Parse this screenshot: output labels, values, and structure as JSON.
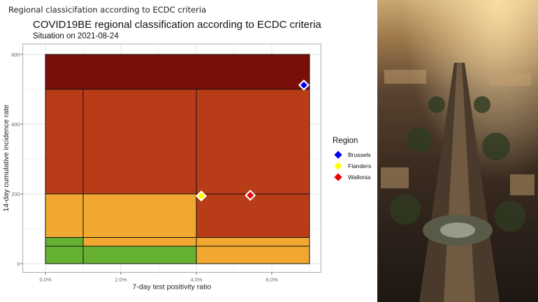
{
  "page_title": "Regional classicifation according to ECDC criteria",
  "chart_data": {
    "type": "scatter",
    "title": "COVID19BE regional classification according to ECDC criteria",
    "subtitle": "Situation on 2021-08-24",
    "xlabel": "7-day test positivity ratio",
    "ylabel": "14-day cumulative incidence rate",
    "xlim": [
      -0.6,
      7.3
    ],
    "ylim": [
      -25,
      630
    ],
    "xticks": [
      0,
      2,
      4,
      6
    ],
    "xtick_labels": [
      "0.0%",
      "2.0%",
      "4.0%",
      "6.0%"
    ],
    "yticks": [
      0,
      200,
      400,
      600
    ],
    "ytick_labels": [
      "0",
      "200",
      "400",
      "600"
    ],
    "grid": true,
    "zone_colors": {
      "green": "#66b032",
      "orange": "#f0a830",
      "red": "#b83c18",
      "darkred": "#7a0f09"
    },
    "zones": [
      {
        "x": [
          0,
          7
        ],
        "y": [
          500,
          600
        ],
        "color": "darkred"
      },
      {
        "x": [
          0,
          1
        ],
        "y": [
          200,
          500
        ],
        "color": "red"
      },
      {
        "x": [
          1,
          4
        ],
        "y": [
          200,
          500
        ],
        "color": "red"
      },
      {
        "x": [
          4,
          7
        ],
        "y": [
          200,
          500
        ],
        "color": "red"
      },
      {
        "x": [
          0,
          1
        ],
        "y": [
          75,
          200
        ],
        "color": "orange"
      },
      {
        "x": [
          1,
          4
        ],
        "y": [
          75,
          200
        ],
        "color": "orange"
      },
      {
        "x": [
          4,
          7
        ],
        "y": [
          75,
          200
        ],
        "color": "red"
      },
      {
        "x": [
          0,
          1
        ],
        "y": [
          50,
          75
        ],
        "color": "green"
      },
      {
        "x": [
          1,
          4
        ],
        "y": [
          50,
          75
        ],
        "color": "orange"
      },
      {
        "x": [
          4,
          7
        ],
        "y": [
          50,
          75
        ],
        "color": "orange"
      },
      {
        "x": [
          0,
          1
        ],
        "y": [
          0,
          50
        ],
        "color": "green"
      },
      {
        "x": [
          1,
          4
        ],
        "y": [
          0,
          50
        ],
        "color": "green"
      },
      {
        "x": [
          4,
          7
        ],
        "y": [
          0,
          50
        ],
        "color": "orange"
      }
    ],
    "legend_title": "Region",
    "legend_position": "right",
    "series": [
      {
        "name": "Brussels",
        "color": "#0000ee",
        "x": 6.85,
        "y": 512
      },
      {
        "name": "Flanders",
        "color": "#ffff00",
        "x": 4.13,
        "y": 194
      },
      {
        "name": "Wallonia",
        "color": "#ee0000",
        "x": 5.43,
        "y": 196
      }
    ]
  }
}
